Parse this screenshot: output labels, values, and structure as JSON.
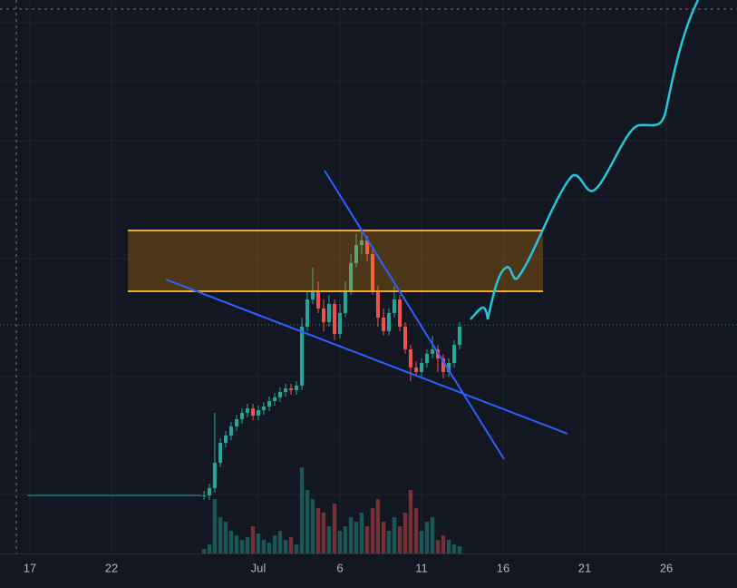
{
  "chart_data": {
    "type": "candlestick",
    "x": [
      27.67,
      28,
      28.33,
      28.67,
      29,
      29.33,
      29.67,
      30,
      30.33,
      30.67,
      31,
      31.33,
      31.67,
      32,
      32.33,
      32.67,
      33,
      33.33,
      33.67,
      34,
      34.33,
      34.67,
      35,
      35.33,
      35.67,
      36,
      36.33,
      36.67,
      37,
      37.33,
      37.67,
      38,
      38.33,
      38.67,
      39,
      39.33,
      39.67,
      40,
      40.33,
      40.67,
      41,
      41.33,
      41.67,
      42,
      42.33,
      42.67,
      43,
      43.33
    ],
    "open": [
      64,
      64,
      72,
      100,
      122,
      130,
      140,
      148,
      155,
      160,
      152,
      158,
      162,
      168,
      172,
      178,
      182,
      180,
      185,
      250,
      280,
      290,
      270,
      255,
      275,
      242,
      265,
      290,
      320,
      340,
      345,
      330,
      290,
      260,
      245,
      265,
      280,
      250,
      225,
      205,
      200,
      210,
      220,
      225,
      215,
      200,
      210,
      230
    ],
    "high": [
      69,
      77,
      155,
      127,
      135,
      145,
      153,
      160,
      165,
      165,
      163,
      167,
      173,
      177,
      183,
      187,
      187,
      190,
      260,
      290,
      315,
      300,
      280,
      285,
      280,
      275,
      300,
      330,
      352,
      355,
      350,
      335,
      295,
      270,
      270,
      295,
      285,
      255,
      230,
      212,
      215,
      225,
      240,
      230,
      220,
      215,
      235,
      255
    ],
    "low": [
      59,
      59,
      67,
      95,
      117,
      125,
      135,
      143,
      150,
      147,
      147,
      153,
      157,
      163,
      167,
      173,
      175,
      175,
      180,
      245,
      275,
      265,
      245,
      250,
      235,
      237,
      260,
      285,
      315,
      330,
      322,
      285,
      250,
      240,
      240,
      260,
      245,
      220,
      190,
      195,
      195,
      205,
      215,
      200,
      193,
      195,
      205,
      225
    ],
    "close": [
      64,
      72,
      100,
      122,
      130,
      140,
      148,
      155,
      160,
      152,
      158,
      162,
      168,
      172,
      178,
      182,
      180,
      185,
      250,
      280,
      290,
      270,
      255,
      275,
      242,
      265,
      290,
      320,
      340,
      345,
      330,
      290,
      260,
      245,
      265,
      280,
      250,
      225,
      205,
      200,
      210,
      220,
      225,
      215,
      200,
      210,
      230,
      250
    ],
    "volume": [
      5,
      10,
      60,
      40,
      35,
      25,
      20,
      15,
      18,
      30,
      22,
      15,
      12,
      20,
      25,
      15,
      18,
      10,
      95,
      70,
      60,
      50,
      45,
      30,
      55,
      25,
      30,
      40,
      35,
      45,
      30,
      50,
      60,
      35,
      25,
      40,
      30,
      45,
      70,
      50,
      25,
      35,
      40,
      15,
      20,
      15,
      10,
      8
    ],
    "up_color": "#26a69a",
    "down_color": "#ef5350",
    "xlim": [
      15.17,
      60.33
    ],
    "ylim": [
      0,
      610
    ],
    "volume_lim": [
      0,
      100
    ],
    "xticks": [
      17,
      22,
      {
        "value": 31,
        "label": "Jul"
      },
      {
        "value": 36,
        "label": "6"
      },
      {
        "value": 41,
        "label": "11"
      },
      {
        "value": 46,
        "label": "16"
      },
      {
        "value": 51,
        "label": "21"
      },
      {
        "value": 56,
        "label": "26"
      }
    ],
    "grid": true
  }
}
